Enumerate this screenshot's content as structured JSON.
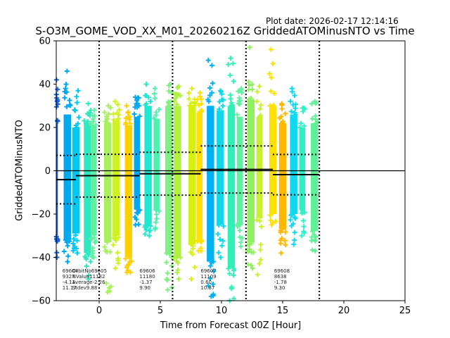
{
  "header": {
    "plot_date": "Plot date: 2026-02-17 12:14:16"
  },
  "chart_data": {
    "type": "scatter",
    "title": "S-O3M_GOME_VOD_XX_M01_20260216Z GriddedATOMinusNTO vs Time",
    "xlabel": "Time from Forecast 00Z [Hour]",
    "ylabel": "GriddedATOMinusNTO",
    "xlim": [
      -3.5,
      25
    ],
    "ylim": [
      -60,
      60
    ],
    "xticks": [
      0,
      5,
      10,
      15,
      20,
      25
    ],
    "yticks": [
      -60,
      -40,
      -20,
      0,
      20,
      40,
      60
    ],
    "grid": false,
    "marker": "+",
    "zero_line": 0,
    "vertical_dotted_lines": [
      0,
      6,
      12,
      18
    ],
    "bands": [
      {
        "x": -3.45,
        "color": "#1060e0",
        "low": -40,
        "high": 42,
        "core_low": -30,
        "core_high": 22,
        "width": 0.15
      },
      {
        "x": -2.6,
        "color": "#00a8f0",
        "low": -42,
        "high": 46,
        "core_low": -32,
        "core_high": 26,
        "width": 0.6
      },
      {
        "x": -1.9,
        "color": "#00c8f0",
        "low": -38,
        "high": 37,
        "core_low": -29,
        "core_high": 20,
        "width": 0.6
      },
      {
        "x": -0.95,
        "color": "#30e8c0",
        "low": -50,
        "high": 31,
        "core_low": -38,
        "core_high": 22,
        "width": 0.6
      },
      {
        "x": -0.45,
        "color": "#60f0a0",
        "low": -40,
        "high": 28,
        "core_low": -30,
        "core_high": 21,
        "width": 0.5
      },
      {
        "x": 0.7,
        "color": "#a8f060",
        "low": -56,
        "high": 30,
        "core_low": -33,
        "core_high": 22,
        "width": 0.6
      },
      {
        "x": 1.4,
        "color": "#d0f020",
        "low": -45,
        "high": 32,
        "core_low": -30,
        "core_high": 23,
        "width": 0.6
      },
      {
        "x": 2.4,
        "color": "#ffd000",
        "low": -47,
        "high": 30,
        "core_low": -40,
        "core_high": 21,
        "width": 0.6
      },
      {
        "x": 3.1,
        "color": "#00aaf0",
        "low": -25,
        "high": 34,
        "core_low": -18,
        "core_high": 25,
        "width": 0.5
      },
      {
        "x": 4.0,
        "color": "#20e8d0",
        "low": -30,
        "high": 40,
        "core_low": -25,
        "core_high": 30,
        "width": 0.6
      },
      {
        "x": 4.7,
        "color": "#50f0b0",
        "low": -27,
        "high": 38,
        "core_low": -18,
        "core_high": 24,
        "width": 0.5
      },
      {
        "x": 5.7,
        "color": "#80f080",
        "low": -55,
        "high": 40,
        "core_low": -38,
        "core_high": 30,
        "width": 0.6
      },
      {
        "x": 6.4,
        "color": "#b0f040",
        "low": -50,
        "high": 39,
        "core_low": -40,
        "core_high": 30,
        "width": 0.6
      },
      {
        "x": 7.6,
        "color": "#d8f010",
        "low": -50,
        "high": 38,
        "core_low": -34,
        "core_high": 30,
        "width": 0.6
      },
      {
        "x": 8.2,
        "color": "#ffe000",
        "low": -37,
        "high": 36,
        "core_low": -32,
        "core_high": 27,
        "width": 0.5
      },
      {
        "x": 9.1,
        "color": "#00b0f0",
        "low": -58,
        "high": 51,
        "core_low": -42,
        "core_high": 30,
        "width": 0.6
      },
      {
        "x": 9.9,
        "color": "#10d8e8",
        "low": -40,
        "high": 37,
        "core_low": -25,
        "core_high": 28,
        "width": 0.6
      },
      {
        "x": 10.8,
        "color": "#30f0b8",
        "low": -60,
        "high": 52,
        "core_low": -45,
        "core_high": 30,
        "width": 0.6
      },
      {
        "x": 11.5,
        "color": "#60f0a0",
        "low": -35,
        "high": 38,
        "core_low": -25,
        "core_high": 25,
        "width": 0.5
      },
      {
        "x": 12.4,
        "color": "#90f060",
        "low": -45,
        "high": 57,
        "core_low": -33,
        "core_high": 33,
        "width": 0.6
      },
      {
        "x": 13.1,
        "color": "#c8f030",
        "low": -48,
        "high": 39,
        "core_low": -22,
        "core_high": 25,
        "width": 0.5
      },
      {
        "x": 14.2,
        "color": "#ffe000",
        "low": -25,
        "high": 56,
        "core_low": -20,
        "core_high": 30,
        "width": 0.6
      },
      {
        "x": 15.0,
        "color": "#ffb800",
        "low": -38,
        "high": 31,
        "core_low": -27,
        "core_high": 22,
        "width": 0.6
      },
      {
        "x": 15.9,
        "color": "#10d8f0",
        "low": -34,
        "high": 38,
        "core_low": -20,
        "core_high": 26,
        "width": 0.6
      },
      {
        "x": 16.6,
        "color": "#30f0c8",
        "low": -30,
        "high": 29,
        "core_low": -18,
        "core_high": 20,
        "width": 0.5
      },
      {
        "x": 17.6,
        "color": "#60f098",
        "low": -37,
        "high": 32,
        "core_low": -28,
        "core_high": 22,
        "width": 0.6
      }
    ],
    "orbit_stats": [
      {
        "orbit": "69604",
        "nvalue": "9327",
        "average": -4.11,
        "stdev": 11.17,
        "x_start": -3.5,
        "x_end": -1.9,
        "average_label": "-4.11",
        "stdev_label": "11.17"
      },
      {
        "orbit": "69605",
        "nvalue": "11182",
        "average": -2.26,
        "stdev": 9.88,
        "x_start": -1.9,
        "x_end": 3.3,
        "average_label": "-2.26",
        "stdev_label": "9.88"
      },
      {
        "orbit": "69606",
        "nvalue": "11180",
        "average": -1.37,
        "stdev": 9.9,
        "x_start": 3.3,
        "x_end": 8.3,
        "average_label": "-1.37",
        "stdev_label": "9.90"
      },
      {
        "orbit": "69607",
        "nvalue": "11109",
        "average": 0.6,
        "stdev": 10.87,
        "x_start": 8.3,
        "x_end": 14.2,
        "average_label": "0.60",
        "stdev_label": "10.87"
      },
      {
        "orbit": "69608",
        "nvalue": "8638",
        "average": -1.78,
        "stdev": 9.3,
        "x_start": 14.2,
        "x_end": 18.0,
        "average_label": "-1.78",
        "stdev_label": "9.30"
      }
    ],
    "stat_row_labels": [
      "OrbitNo",
      "NValue",
      "Average",
      "Stdev"
    ],
    "annotation_x": [
      -3.0,
      -2.2,
      3.3,
      8.3,
      14.3
    ]
  }
}
